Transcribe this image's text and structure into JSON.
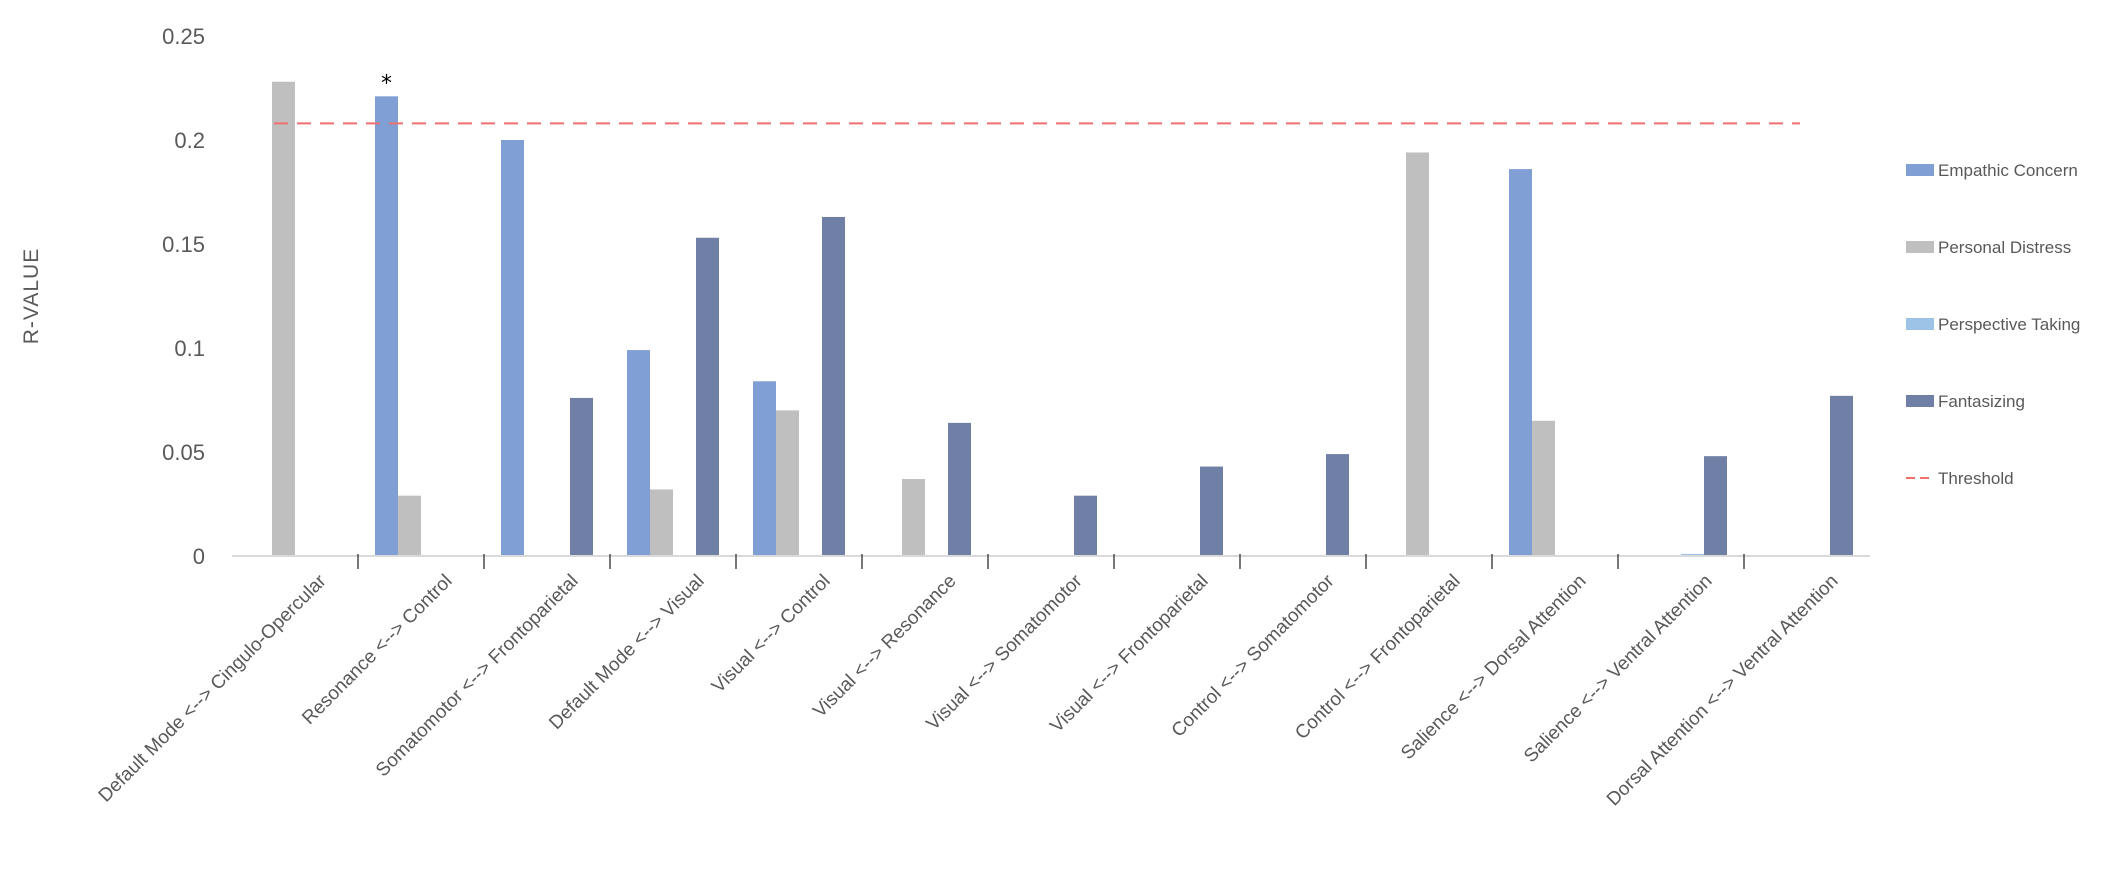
{
  "chart_data": {
    "type": "bar",
    "ylabel": "R-VALUE",
    "ylim": [
      0,
      0.25
    ],
    "yticks": [
      0,
      0.05,
      0.1,
      0.15,
      0.2,
      0.25
    ],
    "ytick_labels": [
      "0",
      "0.05",
      "0.1",
      "0.15",
      "0.2",
      "0.25"
    ],
    "grid": false,
    "legend_position": "right",
    "categories": [
      "Default Mode <--> Cingulo-Opercular",
      "Resonance  <--> Control",
      "Somatomotor <--> Frontoparietal",
      "Default Mode <--> Visual",
      "Visual <--> Control",
      "Visual <--> Resonance",
      "Visual <--> Somatomotor",
      "Visual <--> Frontoparietal",
      "Control <--> Somatomotor",
      "Control <--> Frontoparietal",
      "Salience <--> Dorsal Attention",
      "Salience <--> Ventral Attention",
      "Dorsal Attention <--> Ventral Attention"
    ],
    "series": [
      {
        "name": "Empathic Concern",
        "color": "#7F9FD5",
        "values": [
          0,
          0.221,
          0.2,
          0.099,
          0.084,
          0,
          0,
          0,
          0,
          0,
          0.186,
          0,
          0
        ]
      },
      {
        "name": "Personal Distress",
        "color": "#BFBFBF",
        "values": [
          0.228,
          0.029,
          0,
          0.032,
          0.07,
          0.037,
          0,
          0,
          0,
          0.194,
          0.065,
          0,
          0
        ]
      },
      {
        "name": "Perspective Taking",
        "color": "#9DC3E6",
        "values": [
          0,
          0,
          0,
          0,
          0,
          0,
          0,
          0,
          0,
          0,
          0,
          0.001,
          0
        ]
      },
      {
        "name": "Fantasizing",
        "color": "#6F7FA5",
        "values": [
          0,
          0,
          0.076,
          0.153,
          0.163,
          0.064,
          0.029,
          0.043,
          0.049,
          0,
          0,
          0.048,
          0.077
        ]
      }
    ],
    "threshold": {
      "name": "Threshold",
      "value": 0.208,
      "color": "#F07070"
    },
    "annotations": [
      {
        "text": "*",
        "category": "Resonance  <--> Control",
        "series": "Empathic Concern"
      }
    ]
  }
}
